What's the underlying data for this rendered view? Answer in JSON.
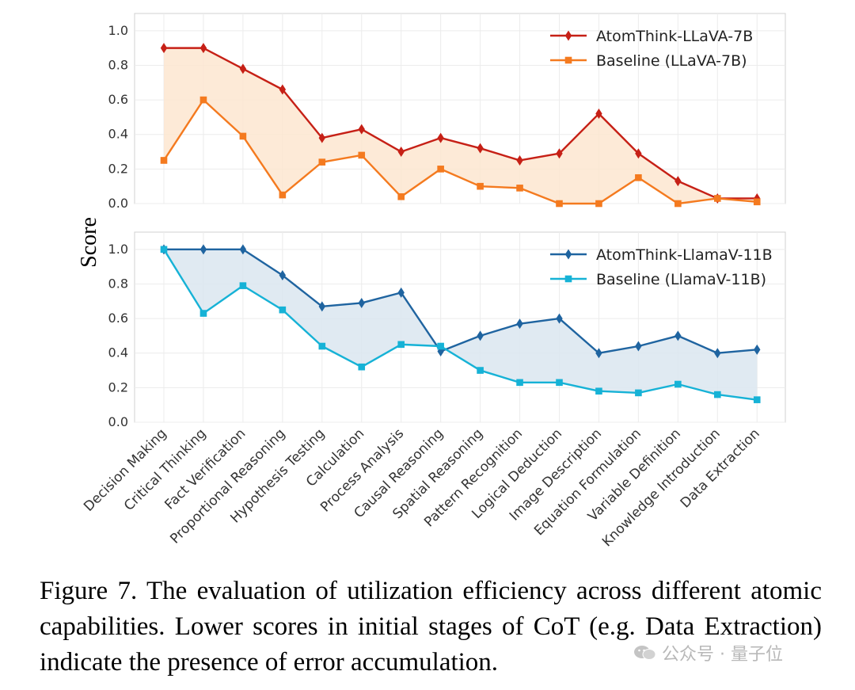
{
  "chart_data": [
    {
      "type": "line",
      "categories": [
        "Decision Making",
        "Critical Thinking",
        "Fact Verification",
        "Proportional Reasoning",
        "Hypothesis Testing",
        "Calculation",
        "Process Analysis",
        "Causal Reasoning",
        "Spatial Reasoning",
        "Pattern Recognition",
        "Logical Deduction",
        "Image Description",
        "Equation Formulation",
        "Variable Definition",
        "Knowledge Introduction",
        "Data Extraction"
      ],
      "series": [
        {
          "name": "AtomThink-LLaVA-7B",
          "color": "#c62016",
          "marker": "diamond",
          "values": [
            0.9,
            0.9,
            0.78,
            0.66,
            0.38,
            0.43,
            0.3,
            0.38,
            0.32,
            0.25,
            0.29,
            0.52,
            0.29,
            0.13,
            0.03,
            0.03
          ]
        },
        {
          "name": "Baseline (LLaVA-7B)",
          "color": "#f47a1f",
          "marker": "square",
          "values": [
            0.25,
            0.6,
            0.39,
            0.05,
            0.24,
            0.28,
            0.04,
            0.2,
            0.1,
            0.09,
            0.0,
            0.0,
            0.15,
            0.0,
            0.03,
            0.01
          ]
        }
      ],
      "fill_color": "#fde6d0",
      "ylim": [
        0,
        1.1
      ],
      "yticks": [
        "0.0",
        "0.2",
        "0.4",
        "0.6",
        "0.8",
        "1.0"
      ],
      "grid": true,
      "legend": "top-right"
    },
    {
      "type": "line",
      "categories": [
        "Decision Making",
        "Critical Thinking",
        "Fact Verification",
        "Proportional Reasoning",
        "Hypothesis Testing",
        "Calculation",
        "Process Analysis",
        "Causal Reasoning",
        "Spatial Reasoning",
        "Pattern Recognition",
        "Logical Deduction",
        "Image Description",
        "Equation Formulation",
        "Variable Definition",
        "Knowledge Introduction",
        "Data Extraction"
      ],
      "series": [
        {
          "name": "AtomThink-LlamaV-11B",
          "color": "#1f64a0",
          "marker": "diamond",
          "values": [
            1.0,
            1.0,
            1.0,
            0.85,
            0.67,
            0.69,
            0.75,
            0.41,
            0.5,
            0.57,
            0.6,
            0.4,
            0.44,
            0.5,
            0.4,
            0.42
          ]
        },
        {
          "name": "Baseline (LlamaV-11B)",
          "color": "#16b2d6",
          "marker": "square",
          "values": [
            1.0,
            0.63,
            0.79,
            0.65,
            0.44,
            0.32,
            0.45,
            0.44,
            0.3,
            0.23,
            0.23,
            0.18,
            0.17,
            0.22,
            0.16,
            0.13
          ]
        }
      ],
      "fill_color": "#dae6f0",
      "ylim": [
        0,
        1.1
      ],
      "yticks": [
        "0.0",
        "0.2",
        "0.4",
        "0.6",
        "0.8",
        "1.0"
      ],
      "grid": true,
      "legend": "top-right"
    }
  ],
  "ylabel": "Score",
  "caption": "Figure 7.  The evaluation of utilization efficiency across different atomic capabilities.  Lower scores in initial stages of CoT (e.g. Data Extraction) indicate the presence of error accumulation.",
  "watermark": {
    "text": "公众号 · 量子位",
    "icon": "wechat-icon"
  }
}
